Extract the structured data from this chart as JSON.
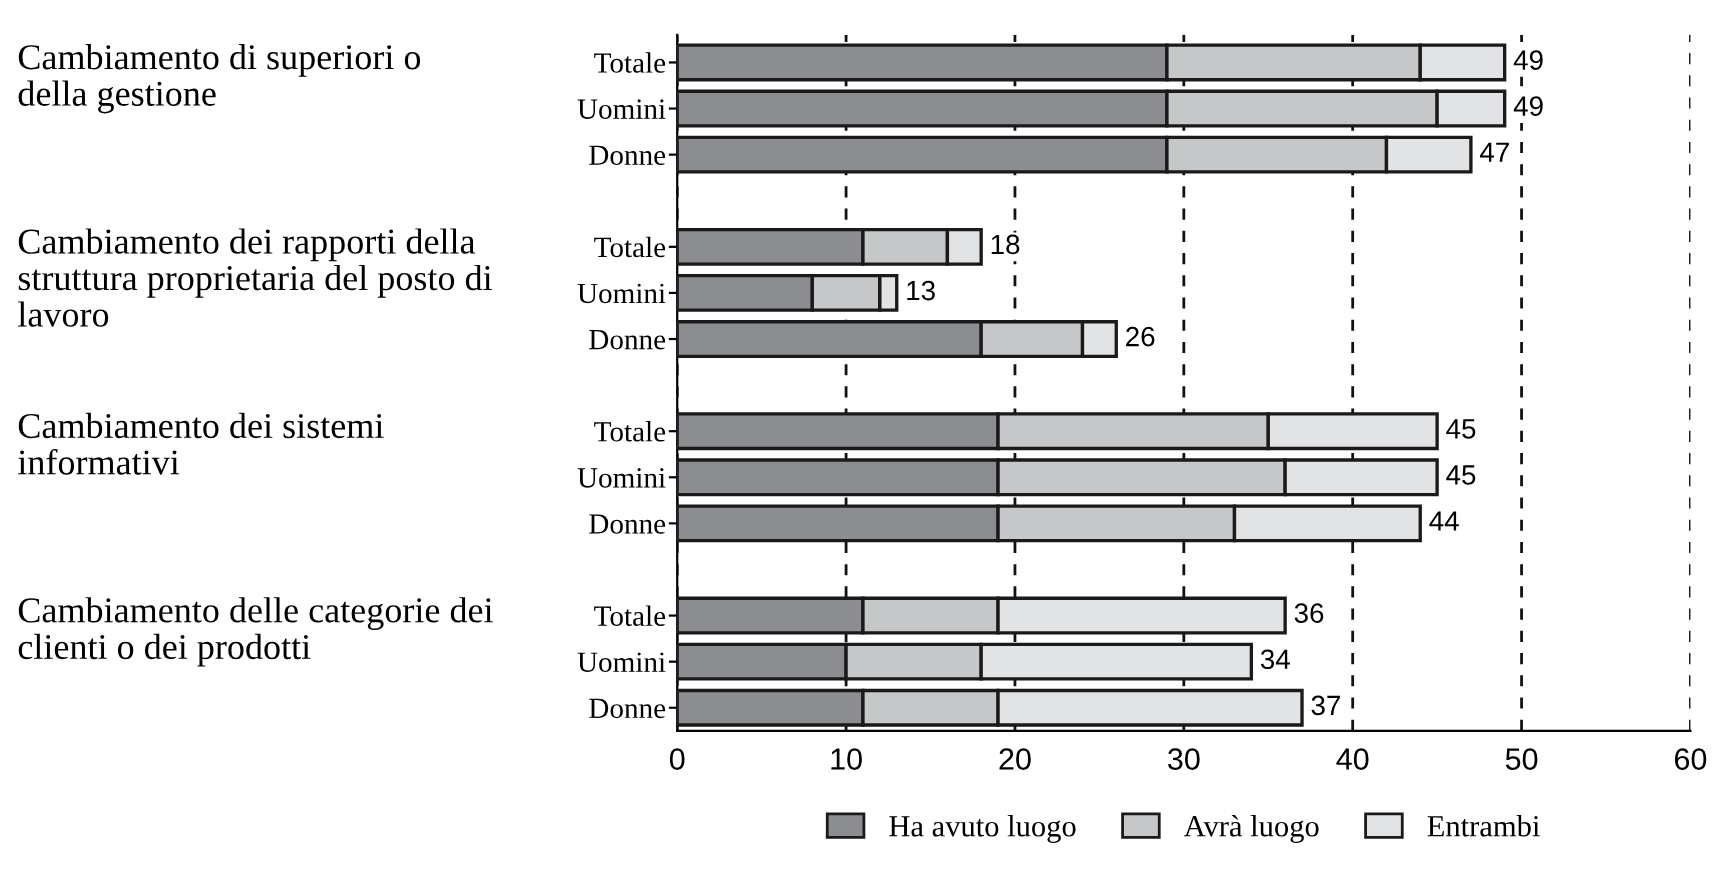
{
  "chart_data": {
    "type": "bar",
    "orientation": "horizontal",
    "stacked": true,
    "categories": [
      "Totale",
      "Uomini",
      "Donne",
      null,
      "Totale",
      "Uomini",
      "Donne",
      null,
      "Totale",
      "Uomini",
      "Donne",
      null,
      "Totale",
      "Uomini",
      "Donne"
    ],
    "series": [
      {
        "name": "Ha avuto luogo",
        "color": "#8c8d90",
        "values": [
          29,
          29,
          29,
          null,
          11,
          8,
          18,
          null,
          19,
          19,
          19,
          null,
          11,
          10,
          11
        ]
      },
      {
        "name": "Avrà luogo",
        "color": "#c6c7c9",
        "values": [
          15,
          16,
          13,
          null,
          5,
          4,
          6,
          null,
          16,
          17,
          14,
          null,
          8,
          8,
          8
        ]
      },
      {
        "name": "Entrambi",
        "color": "#e2e3e4",
        "values": [
          5,
          4,
          5,
          null,
          2,
          1,
          2,
          null,
          10,
          9,
          11,
          null,
          17,
          16,
          18
        ]
      }
    ],
    "totals": [
      "49",
      "49",
      "47",
      null,
      "18",
      "13",
      "26",
      null,
      "45",
      "45",
      "44",
      null,
      "36",
      "34",
      "37"
    ],
    "annotations": [
      "Cambiamento di superiori o della gestione",
      "Cambiamento dei rapporti della struttura proprietaria del posto di lavoro",
      "Cambiamento dei sistemi informativi",
      "Cambiamento delle categorie dei clienti o dei prodotti"
    ],
    "xlim": [
      0,
      60
    ],
    "xticks": [
      0,
      10,
      20,
      30,
      40,
      50,
      60
    ],
    "grid": "x",
    "legend": "bottom"
  }
}
